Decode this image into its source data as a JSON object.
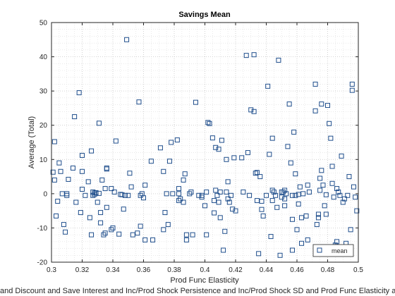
{
  "chart_data": {
    "type": "scatter",
    "title": "Savings Mean",
    "xlabel": "Prod Func Elasticity",
    "ylabel": "Average (Total)",
    "bottom_caption": "and Discount and Save Interest and Inc/Prod Shock Persistence and Inc/Prod Shock SD and Prod Func Elasticity a",
    "xlim": [
      0.3,
      0.5
    ],
    "ylim": [
      -20,
      50
    ],
    "xticks": [
      "0.3",
      "0.32",
      "0.34",
      "0.36",
      "0.38",
      "0.4",
      "0.42",
      "0.44",
      "0.46",
      "0.48",
      "0.5"
    ],
    "yticks": [
      "-20",
      "-10",
      "0",
      "10",
      "20",
      "30",
      "40",
      "50"
    ],
    "grid": "minor dotted",
    "legend_position": "bottom-right",
    "marker": "square-open",
    "color": "#1f4e8c",
    "series": [
      {
        "name": "mean",
        "points": [
          [
            0.301,
            6.3
          ],
          [
            0.302,
            4.0
          ],
          [
            0.302,
            15.2
          ],
          [
            0.303,
            -6.5
          ],
          [
            0.304,
            -2.2
          ],
          [
            0.305,
            9.0
          ],
          [
            0.306,
            6.5
          ],
          [
            0.307,
            0.0
          ],
          [
            0.308,
            -9.0
          ],
          [
            0.309,
            -11.2
          ],
          [
            0.31,
            -0.5
          ],
          [
            0.31,
            0.0
          ],
          [
            0.311,
            4.2
          ],
          [
            0.314,
            7.5
          ],
          [
            0.315,
            22.5
          ],
          [
            0.316,
            -2.5
          ],
          [
            0.318,
            29.5
          ],
          [
            0.319,
            -5.5
          ],
          [
            0.32,
            6.5
          ],
          [
            0.32,
            11.2
          ],
          [
            0.32,
            1.3
          ],
          [
            0.322,
            -0.5
          ],
          [
            0.324,
            3.5
          ],
          [
            0.325,
            -7.0
          ],
          [
            0.326,
            -12.0
          ],
          [
            0.326,
            12.5
          ],
          [
            0.327,
            0.5
          ],
          [
            0.327,
            -0.5
          ],
          [
            0.328,
            0.2
          ],
          [
            0.328,
            -0.2
          ],
          [
            0.329,
            0.3
          ],
          [
            0.33,
            -2.5
          ],
          [
            0.331,
            20.6
          ],
          [
            0.331,
            0.1
          ],
          [
            0.332,
            -5.5
          ],
          [
            0.332,
            -8.5
          ],
          [
            0.333,
            4.0
          ],
          [
            0.334,
            -12.0
          ],
          [
            0.335,
            -11.5
          ],
          [
            0.335,
            1.5
          ],
          [
            0.336,
            -4.0
          ],
          [
            0.336,
            7.2
          ],
          [
            0.336,
            7.5
          ],
          [
            0.339,
            1.5
          ],
          [
            0.339,
            -10.5
          ],
          [
            0.34,
            -10.0
          ],
          [
            0.341,
            0.5
          ],
          [
            0.342,
            15.4
          ],
          [
            0.344,
            -11.8
          ],
          [
            0.345,
            -0.2
          ],
          [
            0.346,
            -0.3
          ],
          [
            0.347,
            -4.5
          ],
          [
            0.348,
            -0.5
          ],
          [
            0.349,
            45.0
          ],
          [
            0.35,
            -0.5
          ],
          [
            0.351,
            6.0
          ],
          [
            0.352,
            2.0
          ],
          [
            0.353,
            -12.0
          ],
          [
            0.356,
            -11.5
          ],
          [
            0.357,
            26.8
          ],
          [
            0.358,
            -9.5
          ],
          [
            0.358,
            -0.5
          ],
          [
            0.359,
            0.0
          ],
          [
            0.36,
            -1.2
          ],
          [
            0.361,
            2.5
          ],
          [
            0.361,
            -13.5
          ],
          [
            0.365,
            9.5
          ],
          [
            0.366,
            -13.5
          ],
          [
            0.371,
            13.4
          ],
          [
            0.373,
            -10.5
          ],
          [
            0.373,
            6.5
          ],
          [
            0.374,
            -5.5
          ],
          [
            0.375,
            0.0
          ],
          [
            0.376,
            -9.0
          ],
          [
            0.377,
            9.5
          ],
          [
            0.378,
            15.0
          ],
          [
            0.379,
            0.0
          ],
          [
            0.382,
            15.7
          ],
          [
            0.383,
            1.5
          ],
          [
            0.383,
            0.0
          ],
          [
            0.383,
            -2.0
          ],
          [
            0.384,
            -1.5
          ],
          [
            0.386,
            -2.5
          ],
          [
            0.386,
            4.0
          ],
          [
            0.387,
            5.8
          ],
          [
            0.388,
            -12.0
          ],
          [
            0.388,
            -13.5
          ],
          [
            0.39,
            0.0
          ],
          [
            0.391,
            0.5
          ],
          [
            0.392,
            -12.0
          ],
          [
            0.394,
            26.7
          ],
          [
            0.396,
            -0.5
          ],
          [
            0.398,
            -0.5
          ],
          [
            0.398,
            -1.0
          ],
          [
            0.4,
            -3.5
          ],
          [
            0.401,
            0.5
          ],
          [
            0.401,
            -12.0
          ],
          [
            0.402,
            20.8
          ],
          [
            0.403,
            20.5
          ],
          [
            0.405,
            16.3
          ],
          [
            0.406,
            -5.6
          ],
          [
            0.406,
            -2.0
          ],
          [
            0.407,
            1.0
          ],
          [
            0.407,
            13.5
          ],
          [
            0.408,
            -0.5
          ],
          [
            0.409,
            -2.5
          ],
          [
            0.409,
            13.0
          ],
          [
            0.41,
            0.5
          ],
          [
            0.41,
            -7.0
          ],
          [
            0.411,
            15.6
          ],
          [
            0.412,
            -16.5
          ],
          [
            0.413,
            -11.0
          ],
          [
            0.414,
            10.0
          ],
          [
            0.414,
            0.5
          ],
          [
            0.415,
            3.5
          ],
          [
            0.415,
            -1.5
          ],
          [
            0.416,
            -2.5
          ],
          [
            0.417,
            -0.5
          ],
          [
            0.418,
            -4.5
          ],
          [
            0.419,
            10.5
          ],
          [
            0.42,
            -5.0
          ],
          [
            0.424,
            10.5
          ],
          [
            0.425,
            0.5
          ],
          [
            0.427,
            40.4
          ],
          [
            0.428,
            12.0
          ],
          [
            0.429,
            -0.5
          ],
          [
            0.43,
            24.5
          ],
          [
            0.432,
            40.6
          ],
          [
            0.432,
            24.0
          ],
          [
            0.433,
            6.0
          ],
          [
            0.434,
            6.2
          ],
          [
            0.434,
            -2.0
          ],
          [
            0.435,
            -17.5
          ],
          [
            0.436,
            5.0
          ],
          [
            0.437,
            -2.2
          ],
          [
            0.437,
            -4.6
          ],
          [
            0.438,
            -6.5
          ],
          [
            0.44,
            -0.5
          ],
          [
            0.441,
            31.4
          ],
          [
            0.442,
            11.5
          ],
          [
            0.443,
            -12.5
          ],
          [
            0.444,
            1.0
          ],
          [
            0.444,
            16.2
          ],
          [
            0.444,
            -2.0
          ],
          [
            0.445,
            0.5
          ],
          [
            0.446,
            -0.5
          ],
          [
            0.447,
            -4.0
          ],
          [
            0.448,
            39.0
          ],
          [
            0.449,
            -18.0
          ],
          [
            0.45,
            0.5
          ],
          [
            0.45,
            -1.0
          ],
          [
            0.451,
            0.5
          ],
          [
            0.452,
            1.0
          ],
          [
            0.452,
            -3.5
          ],
          [
            0.452,
            -1.5
          ],
          [
            0.453,
            0.0
          ],
          [
            0.454,
            13.8
          ],
          [
            0.455,
            26.2
          ],
          [
            0.456,
            9.0
          ],
          [
            0.457,
            -16.5
          ],
          [
            0.457,
            -7.5
          ],
          [
            0.457,
            -0.5
          ],
          [
            0.458,
            18.0
          ],
          [
            0.459,
            5.8
          ],
          [
            0.459,
            -0.5
          ],
          [
            0.46,
            -10.5
          ],
          [
            0.461,
            -3.0
          ],
          [
            0.461,
            -0.2
          ],
          [
            0.462,
            2.0
          ],
          [
            0.463,
            -7.0
          ],
          [
            0.463,
            -14.5
          ],
          [
            0.464,
            0.0
          ],
          [
            0.466,
            -6.5
          ],
          [
            0.467,
            2.5
          ],
          [
            0.467,
            -13.5
          ],
          [
            0.468,
            0.5
          ],
          [
            0.472,
            32.0
          ],
          [
            0.472,
            24.2
          ],
          [
            0.473,
            -9.0
          ],
          [
            0.474,
            -7.0
          ],
          [
            0.474,
            -6.0
          ],
          [
            0.475,
            1.0
          ],
          [
            0.475,
            4.5
          ],
          [
            0.476,
            6.8
          ],
          [
            0.476,
            26.2
          ],
          [
            0.477,
            2.5
          ],
          [
            0.478,
            -3.5
          ],
          [
            0.479,
            -6.0
          ],
          [
            0.479,
            -0.3
          ],
          [
            0.48,
            25.8
          ],
          [
            0.481,
            20.5
          ],
          [
            0.482,
            16.2
          ],
          [
            0.483,
            3.0
          ],
          [
            0.483,
            8.0
          ],
          [
            0.484,
            -1.0
          ],
          [
            0.485,
            -15.0
          ],
          [
            0.486,
            -14.0
          ],
          [
            0.486,
            1.5
          ],
          [
            0.487,
            0.5
          ],
          [
            0.488,
            -0.5
          ],
          [
            0.489,
            11.0
          ],
          [
            0.49,
            -2.5
          ],
          [
            0.491,
            -1.5
          ],
          [
            0.492,
            -14.5
          ],
          [
            0.493,
            -0.5
          ],
          [
            0.494,
            5.0
          ],
          [
            0.495,
            -10.5
          ],
          [
            0.496,
            32.0
          ],
          [
            0.496,
            30.2
          ],
          [
            0.497,
            2.0
          ],
          [
            0.498,
            -1.0
          ],
          [
            0.499,
            -5.0
          ]
        ]
      }
    ]
  }
}
